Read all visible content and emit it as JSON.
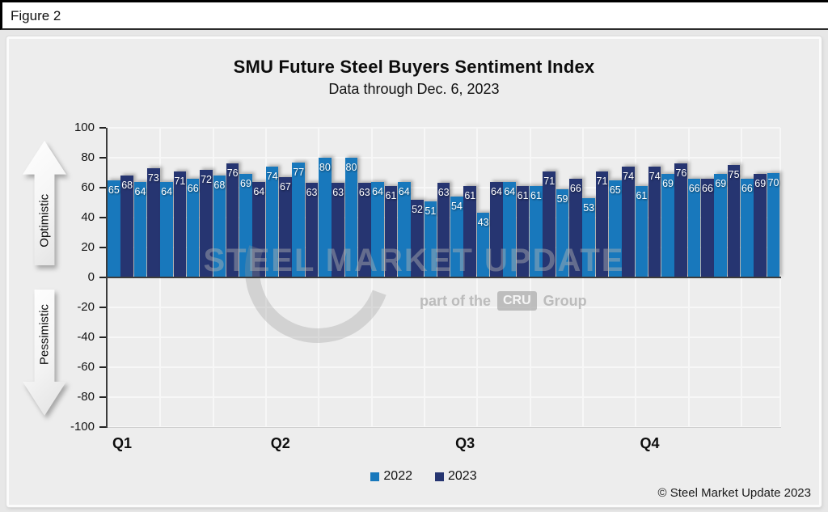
{
  "figure_label": "Figure 2",
  "copyright": "© Steel Market Update 2023",
  "side_labels": {
    "optimistic": "Optimistic",
    "pessimistic": "Pessimistic"
  },
  "watermark": {
    "text": "STEEL MARKET UPDATE",
    "part_of": "part of the",
    "badge": "CRU",
    "group": "Group"
  },
  "colors": {
    "bar_2022": "#1878BC",
    "bar_2023": "#263571",
    "zero_line": "#3C3C3C",
    "panel_bg": "#EDEDED",
    "gridline": "#F7F7F7"
  },
  "chart_data": {
    "type": "bar",
    "title": "SMU Future Steel Buyers Sentiment Index",
    "subtitle": "Data through Dec. 6, 2023",
    "ylim": [
      -100,
      100
    ],
    "ytick_step": 20,
    "yticks": [
      100,
      80,
      60,
      40,
      20,
      0,
      -20,
      -40,
      -60,
      -80,
      -100
    ],
    "grid": true,
    "legend_position": "bottom",
    "legend": [
      {
        "label": "2022",
        "color": "#1878BC"
      },
      {
        "label": "2023",
        "color": "#263571"
      }
    ],
    "series": [
      {
        "name": "2022",
        "color": "#1878BC",
        "values": [
          65,
          64,
          64,
          66,
          68,
          69,
          74,
          77,
          80,
          80,
          64,
          64,
          51,
          54,
          43,
          64,
          61,
          59,
          53,
          65,
          61,
          69,
          66,
          69,
          66,
          70
        ]
      },
      {
        "name": "2023",
        "color": "#263571",
        "values": [
          68,
          73,
          71,
          72,
          76,
          64,
          67,
          63,
          63,
          63,
          61,
          52,
          63,
          61,
          64,
          61,
          71,
          66,
          71,
          74,
          74,
          76,
          66,
          75,
          69
        ]
      }
    ],
    "bar_interleaved_values": [
      65,
      68,
      64,
      73,
      64,
      71,
      66,
      72,
      68,
      76,
      69,
      64,
      74,
      67,
      77,
      63,
      80,
      63,
      80,
      63,
      64,
      61,
      64,
      52,
      51,
      63,
      54,
      61,
      43,
      64,
      64,
      61,
      61,
      71,
      59,
      66,
      53,
      71,
      65,
      74,
      61,
      74,
      69,
      76,
      66,
      66,
      69,
      75,
      66,
      69,
      70
    ],
    "quarter_ticks": [
      {
        "label": "Q1",
        "bar_index": 0
      },
      {
        "label": "Q2",
        "bar_index": 12
      },
      {
        "label": "Q3",
        "bar_index": 26
      },
      {
        "label": "Q4",
        "bar_index": 40
      }
    ]
  }
}
